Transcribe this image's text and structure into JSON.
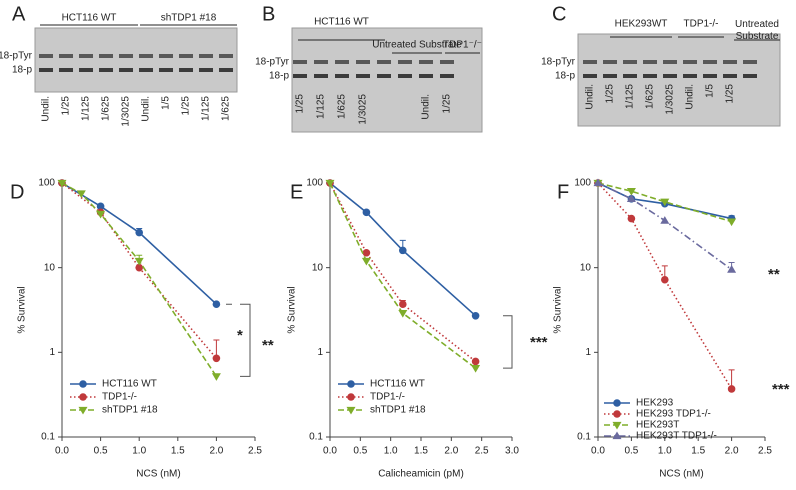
{
  "gels": [
    {
      "label": "A",
      "groups": [
        "HCT116 WT",
        "shTDP1 #18"
      ],
      "markers": [
        "18-pTyr",
        "18-p"
      ],
      "lanes": [
        "Undil.",
        "1/25",
        "1/125",
        "1/625",
        "1/3025",
        "Undil.",
        "1/5",
        "1/25",
        "1/125",
        "1/625"
      ]
    },
    {
      "label": "B",
      "groups": [
        "HCT116 WT",
        "Untreated Substrate",
        "TDP1⁻/⁻"
      ],
      "markers": [
        "18-pTyr",
        "18-p"
      ],
      "lanes": [
        "1/25",
        "1/125",
        "1/625",
        "1/3025",
        null,
        null,
        "Undil.",
        "1/25"
      ]
    },
    {
      "label": "C",
      "groups": [
        "HEK293WT",
        "TDP1-/-",
        "Untreated Substrate"
      ],
      "markers": [
        "18-pTyr",
        "18-p"
      ],
      "lanes": [
        "Undil.",
        "1/25",
        "1/125",
        "1/625",
        "1/3025",
        "Undil.",
        "1/5",
        "1/25",
        null
      ]
    }
  ],
  "chart_data": [
    {
      "type": "line",
      "panel": "D",
      "x_label": "NCS (nM)",
      "y_label": "% Survival",
      "log_y": true,
      "xlim": [
        0,
        2.5
      ],
      "xticks": [
        {
          "value": 0,
          "label": "0.0"
        },
        0.5,
        {
          "value": 1,
          "label": "1.0"
        },
        1.5,
        {
          "value": 2,
          "label": "2.0"
        },
        2.5
      ],
      "ylim": [
        0.1,
        100
      ],
      "yticks": [
        0.1,
        1,
        10,
        100
      ],
      "legend": "lower-left",
      "annotations": [
        "*",
        "**"
      ],
      "series": [
        {
          "name": "HCT116 WT",
          "color": "#2e5fa3",
          "linestyle": "solid",
          "marker": "circle",
          "x": [
            0,
            0.5,
            1,
            2
          ],
          "values": [
            100,
            53,
            26,
            3.7
          ],
          "errors": [
            null,
            null,
            3,
            null
          ]
        },
        {
          "name": "TDP1-/-",
          "color": "#c0393b",
          "linestyle": "dotted",
          "marker": "circle",
          "x": [
            0,
            0.5,
            1,
            2
          ],
          "values": [
            100,
            45,
            10,
            0.85
          ],
          "errors": [
            null,
            null,
            null,
            0.55
          ]
        },
        {
          "name": "shTDP1 #18",
          "color": "#7fad2a",
          "linestyle": "dashed",
          "marker": "triangle-down",
          "x": [
            0,
            0.25,
            0.5,
            1,
            2
          ],
          "values": [
            100,
            75,
            43,
            12,
            0.52
          ],
          "errors": [
            null,
            null,
            null,
            2,
            null
          ]
        }
      ]
    },
    {
      "type": "line",
      "panel": "E",
      "x_label": "Calicheamicin (pM)",
      "y_label": "% Survival",
      "log_y": true,
      "xlim": [
        0,
        3
      ],
      "xticks": [
        {
          "value": 0,
          "label": "0.0"
        },
        0.5,
        {
          "value": 1,
          "label": "1.0"
        },
        1.5,
        {
          "value": 2,
          "label": "2.0"
        },
        2.5,
        {
          "value": 3,
          "label": "3.0"
        }
      ],
      "ylim": [
        0.1,
        100
      ],
      "yticks": [
        0.1,
        1,
        10,
        100
      ],
      "legend": "lower-left",
      "annotations": [
        "***"
      ],
      "series": [
        {
          "name": "HCT116 WT",
          "color": "#2e5fa3",
          "linestyle": "solid",
          "marker": "circle",
          "x": [
            0,
            0.6,
            1.2,
            2.4
          ],
          "values": [
            100,
            45,
            16,
            2.7
          ],
          "errors": [
            null,
            null,
            5,
            null
          ]
        },
        {
          "name": "TDP1-/-",
          "color": "#c0393b",
          "linestyle": "dotted",
          "marker": "circle",
          "x": [
            0,
            0.6,
            1.2,
            2.4
          ],
          "values": [
            100,
            15,
            3.7,
            0.78
          ],
          "errors": [
            null,
            null,
            0.4,
            null
          ]
        },
        {
          "name": "shTDP1 #18",
          "color": "#7fad2a",
          "linestyle": "dashed",
          "marker": "triangle-down",
          "x": [
            0,
            0.6,
            1.2,
            2.4
          ],
          "values": [
            100,
            12,
            2.9,
            0.65
          ],
          "errors": [
            null,
            null,
            null,
            null
          ]
        }
      ]
    },
    {
      "type": "line",
      "panel": "F",
      "x_label": "NCS (nM)",
      "y_label": "% Survival",
      "log_y": true,
      "xlim": [
        0,
        2.5
      ],
      "xticks": [
        {
          "value": 0,
          "label": "0.0"
        },
        0.5,
        {
          "value": 1,
          "label": "1.0"
        },
        1.5,
        {
          "value": 2,
          "label": "2.0"
        },
        2.5
      ],
      "ylim": [
        0.1,
        100
      ],
      "yticks": [
        0.1,
        1,
        10,
        100
      ],
      "legend": "lower-left",
      "annotations": [
        "**",
        "***"
      ],
      "series": [
        {
          "name": "HEK293",
          "color": "#2e5fa3",
          "linestyle": "solid",
          "marker": "circle",
          "x": [
            0,
            0.5,
            1,
            2
          ],
          "values": [
            100,
            65,
            57,
            38
          ],
          "errors": [
            null,
            null,
            null,
            3
          ]
        },
        {
          "name": "HEK293 TDP1-/-",
          "color": "#c0393b",
          "linestyle": "dotted",
          "marker": "circle",
          "x": [
            0,
            0.5,
            1,
            2
          ],
          "values": [
            100,
            38,
            7.2,
            0.37
          ],
          "errors": [
            null,
            null,
            3.3,
            0.25
          ]
        },
        {
          "name": "HEK293T",
          "color": "#7fad2a",
          "linestyle": "dashed",
          "marker": "triangle-down",
          "x": [
            0,
            0.5,
            1,
            2
          ],
          "values": [
            100,
            80,
            60,
            35
          ],
          "errors": [
            null,
            null,
            null,
            null
          ]
        },
        {
          "name": "HEK293T TDP1-/-",
          "color": "#6a6a9e",
          "linestyle": "dashdot",
          "marker": "triangle-up",
          "x": [
            0,
            0.5,
            1,
            2
          ],
          "values": [
            100,
            65,
            36,
            9.5
          ],
          "errors": [
            null,
            null,
            null,
            2
          ]
        }
      ]
    }
  ]
}
